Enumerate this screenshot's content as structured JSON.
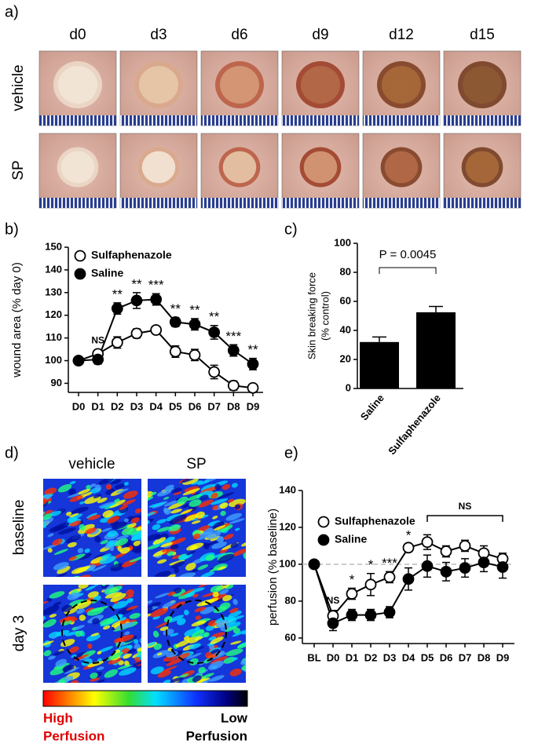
{
  "panels": [
    "a)",
    "b)",
    "c)",
    "d)",
    "e)"
  ],
  "photo_grid": {
    "columns": [
      "d0",
      "d3",
      "d6",
      "d9",
      "d12",
      "d15"
    ],
    "rows": [
      "vehicle",
      "SP"
    ]
  },
  "perfusion_maps": {
    "columns": [
      "vehicle",
      "SP"
    ],
    "rows": [
      "baseline",
      "day 3"
    ],
    "scale_high": [
      "High",
      "Perfusion"
    ],
    "scale_low": [
      "Low",
      "Perfusion"
    ]
  },
  "chart_data": [
    {
      "type": "line",
      "ylabel": "wound area (% day 0)",
      "categories": [
        "D0",
        "D1",
        "D2",
        "D3",
        "D4",
        "D5",
        "D6",
        "D7",
        "D8",
        "D9"
      ],
      "series": [
        {
          "name": "Sulfaphenazole",
          "color": "#ffffff",
          "values": [
            100,
            103,
            108,
            112,
            113.5,
            104,
            102.5,
            95,
            89,
            88
          ],
          "errors": [
            1,
            1.5,
            2.5,
            2,
            1.5,
            2.5,
            2.5,
            3,
            2,
            1.5
          ]
        },
        {
          "name": "Saline",
          "color": "#000000",
          "values": [
            100,
            100.5,
            123,
            126.5,
            127,
            117,
            116,
            112.5,
            104.5,
            98.5
          ],
          "errors": [
            1,
            2,
            2.5,
            3.5,
            2.5,
            2,
            2.5,
            3,
            2.5,
            2.5
          ]
        }
      ],
      "annotations": [
        null,
        "NS",
        "**",
        "**",
        "***",
        "**",
        "**",
        "**",
        "***",
        "**"
      ],
      "ylim": [
        86,
        150
      ],
      "yticks": [
        90,
        100,
        110,
        120,
        130,
        140,
        150
      ]
    },
    {
      "type": "bar",
      "ylabel": [
        "Skin breaking force",
        "(% control)"
      ],
      "categories": [
        "Saline",
        "Sulfaphenazole"
      ],
      "values": [
        32,
        52.5
      ],
      "errors": [
        3.5,
        4
      ],
      "color": "#000000",
      "annotation": "P = 0.0045",
      "ylim": [
        0,
        100
      ],
      "yticks": [
        0,
        20,
        40,
        60,
        80,
        100
      ]
    },
    {
      "type": "line",
      "ylabel": "perfusion (% baseline)",
      "categories": [
        "BL",
        "D0",
        "D1",
        "D2",
        "D3",
        "D4",
        "D5",
        "D6",
        "D7",
        "D8",
        "D9"
      ],
      "series": [
        {
          "name": "Sulfaphenazole",
          "color": "#ffffff",
          "values": [
            100,
            72,
            84,
            89,
            93,
            109,
            112,
            107,
            110,
            106,
            103
          ],
          "errors": [
            0,
            3,
            3,
            6,
            3,
            2,
            4,
            3,
            3,
            4,
            3
          ]
        },
        {
          "name": "Saline",
          "color": "#000000",
          "values": [
            100,
            68,
            72.5,
            72.5,
            74,
            92,
            99,
            96,
            98,
            101,
            98.5
          ],
          "errors": [
            0,
            4,
            3,
            3,
            3,
            6,
            6,
            5,
            5,
            5,
            6
          ]
        }
      ],
      "annotations": [
        null,
        "NS",
        "*",
        "*",
        "***",
        "*",
        null,
        null,
        null,
        null,
        null
      ],
      "bracket": {
        "from": "D5",
        "to": "D9",
        "label": "NS"
      },
      "hline": 100,
      "ylim": [
        57,
        140
      ],
      "yticks": [
        60,
        80,
        100,
        120,
        140
      ]
    }
  ]
}
